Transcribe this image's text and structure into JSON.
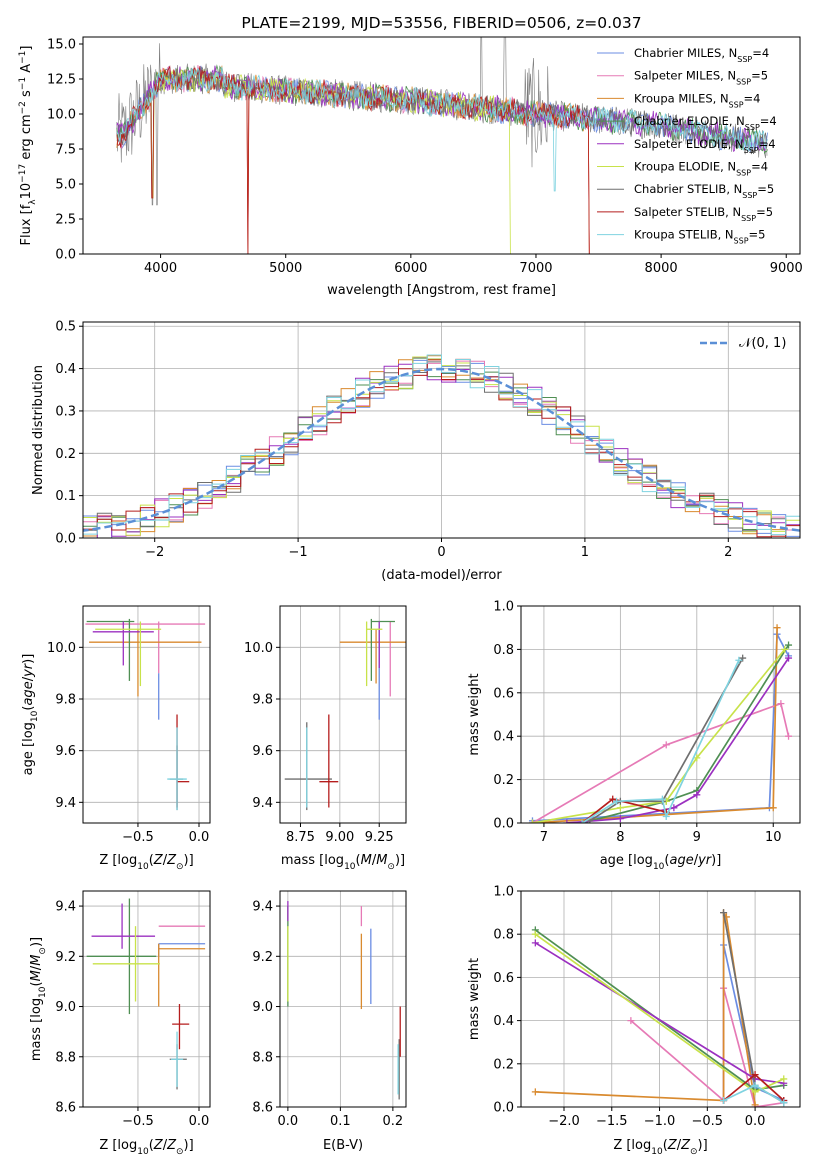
{
  "colors": [
    "#6b8de3",
    "#e67ab6",
    "#d98a2f",
    "#4f8f53",
    "#9b30c0",
    "#c8e24a",
    "#6f6f6f",
    "#b51d1d",
    "#7fd3e0"
  ],
  "chart_data": [
    {
      "panel": "spectrum",
      "type": "line",
      "title_parts": [
        "PLATE=2199, MJD=53556, FIBERID=0506, z=0.037"
      ],
      "xlabel": "wavelength [Angstrom, rest frame]",
      "ylabel_parts": [
        "Flux [f",
        "λ",
        "10",
        "−17",
        " erg cm",
        "−2",
        " s",
        "−1",
        " A",
        "−1",
        "]"
      ],
      "xlim": [
        3380,
        9110
      ],
      "ylim": [
        0,
        15.5
      ],
      "xticks": [
        4000,
        5000,
        6000,
        7000,
        8000,
        9000
      ],
      "yticks": [
        0.0,
        2.5,
        5.0,
        7.5,
        10.0,
        12.5,
        15.0
      ],
      "legend_position": "upper right",
      "series": [
        {
          "name": "Chabrier MILES",
          "nssp": "4"
        },
        {
          "name": "Salpeter MILES",
          "nssp": "5"
        },
        {
          "name": "Kroupa MILES",
          "nssp": "4"
        },
        {
          "name": "Chabrier ELODIE",
          "nssp": "4"
        },
        {
          "name": "Salpeter ELODIE",
          "nssp": "4"
        },
        {
          "name": "Kroupa ELODIE",
          "nssp": "4"
        },
        {
          "name": "Chabrier STELIB",
          "nssp": "5"
        },
        {
          "name": "Salpeter STELIB",
          "nssp": "5"
        },
        {
          "name": "Kroupa STELIB",
          "nssp": "5"
        }
      ],
      "legend_sub": "SSP",
      "legend_prefix": "N"
    },
    {
      "panel": "residuals",
      "type": "histogram",
      "xlabel": "(data-model)/error",
      "ylabel": "Normed distribution",
      "xlim": [
        -2.5,
        2.5
      ],
      "ylim": [
        0,
        0.51
      ],
      "xticks": [
        -2,
        -1,
        0,
        1,
        2
      ],
      "yticks": [
        0.0,
        0.1,
        0.2,
        0.3,
        0.4,
        0.5
      ],
      "reference_curve": "𝒩(0, 1)",
      "legend_position": "upper right"
    },
    {
      "panel": "age-vs-Z",
      "type": "errorbar",
      "xlabel": "Z [log10(Z/Z⊙)]",
      "ylabel": "age  [log10(age/yr)]",
      "xlim": [
        -0.95,
        0.09
      ],
      "ylim": [
        9.32,
        10.16
      ],
      "xticks": [
        -0.5,
        0.0
      ],
      "yticks": [
        9.4,
        9.6,
        9.8,
        10.0
      ],
      "points": [
        {
          "x": -0.33,
          "y": 9.8,
          "xerr": [
            0.0,
            0.0
          ],
          "yerr": [
            0.08,
            0.1
          ]
        },
        {
          "x": -0.33,
          "y": 10.09,
          "xerr": [
            0.6,
            0.38
          ],
          "yerr": [
            0.19,
            0.01
          ]
        },
        {
          "x": -0.5,
          "y": 10.02,
          "xerr": [
            0.4,
            0.52
          ],
          "yerr": [
            0.21,
            0.05
          ]
        },
        {
          "x": -0.57,
          "y": 10.1,
          "xerr": [
            0.35,
            0.04
          ],
          "yerr": [
            0.23,
            0.01
          ]
        },
        {
          "x": -0.62,
          "y": 10.06,
          "xerr": [
            0.25,
            0.25
          ],
          "yerr": [
            0.13,
            0.04
          ]
        },
        {
          "x": -0.48,
          "y": 10.07,
          "xerr": [
            0.37,
            0.17
          ],
          "yerr": [
            0.22,
            0.03
          ]
        },
        {
          "x": -0.18,
          "y": 9.49,
          "xerr": [
            0.06,
            0.05
          ],
          "yerr": [
            0.12,
            0.13
          ]
        },
        {
          "x": -0.18,
          "y": 9.48,
          "xerr": [
            0.0,
            0.1
          ],
          "yerr": [
            0.1,
            0.26
          ]
        },
        {
          "x": -0.18,
          "y": 9.49,
          "xerr": [
            0.08,
            0.08
          ],
          "yerr": [
            0.12,
            0.2
          ]
        }
      ]
    },
    {
      "panel": "age-vs-mass",
      "type": "errorbar",
      "xlabel": "mass [log10(M/M⊙)]",
      "ylabel": "",
      "xlim": [
        8.62,
        9.42
      ],
      "ylim": [
        9.32,
        10.16
      ],
      "xticks": [
        8.75,
        9.0,
        9.25
      ],
      "yticks": [
        9.4,
        9.6,
        9.8,
        10.0
      ],
      "points": [
        {
          "x": 9.25,
          "y": 9.8,
          "xerr": [
            0.0,
            0.0
          ],
          "yerr": [
            0.08,
            0.27
          ]
        },
        {
          "x": 9.32,
          "y": 10.09,
          "xerr": [
            0.0,
            0.0
          ],
          "yerr": [
            0.28,
            0.01
          ]
        },
        {
          "x": 9.23,
          "y": 10.02,
          "xerr": [
            0.23,
            0.2
          ],
          "yerr": [
            0.16,
            0.05
          ]
        },
        {
          "x": 9.2,
          "y": 10.1,
          "xerr": [
            0.0,
            0.15
          ],
          "yerr": [
            0.23,
            0.01
          ]
        },
        {
          "x": 9.25,
          "y": 10.07,
          "xerr": [
            0.0,
            0.0
          ],
          "yerr": [
            0.15,
            0.03
          ]
        },
        {
          "x": 9.17,
          "y": 10.07,
          "xerr": [
            0.0,
            0.1
          ],
          "yerr": [
            0.22,
            0.03
          ]
        },
        {
          "x": 8.79,
          "y": 9.49,
          "xerr": [
            0.14,
            0.16
          ],
          "yerr": [
            0.12,
            0.22
          ]
        },
        {
          "x": 8.93,
          "y": 9.48,
          "xerr": [
            0.06,
            0.06
          ],
          "yerr": [
            0.1,
            0.26
          ]
        },
        {
          "x": 8.79,
          "y": 9.49,
          "xerr": [
            0.0,
            0.0
          ],
          "yerr": [
            0.11,
            0.2
          ]
        }
      ]
    },
    {
      "panel": "weight-vs-age",
      "type": "line",
      "xlabel": "age  [log10(age/yr)]",
      "ylabel": "mass weight",
      "xlim": [
        6.7,
        10.35
      ],
      "ylim": [
        0,
        1
      ],
      "xticks": [
        7,
        8,
        9,
        10
      ],
      "yticks": [
        0.0,
        0.2,
        0.4,
        0.6,
        0.8,
        1.0
      ],
      "series": [
        {
          "x": [
            6.85,
            9.95,
            10.05,
            10.2
          ],
          "y": [
            0.01,
            0.07,
            0.87,
            0.77
          ]
        },
        {
          "x": [
            6.85,
            8.6,
            10.1,
            10.2
          ],
          "y": [
            0.0,
            0.36,
            0.55,
            0.4
          ]
        },
        {
          "x": [
            6.85,
            10.0,
            10.05
          ],
          "y": [
            0.0,
            0.07,
            0.9
          ]
        },
        {
          "x": [
            7.5,
            8.6,
            9.0,
            10.2
          ],
          "y": [
            0.0,
            0.1,
            0.15,
            0.82
          ]
        },
        {
          "x": [
            7.3,
            8.0,
            8.7,
            9.0,
            10.2
          ],
          "y": [
            0.0,
            0.02,
            0.07,
            0.13,
            0.76
          ]
        },
        {
          "x": [
            6.85,
            8.0,
            8.6,
            9.0,
            10.15
          ],
          "y": [
            0.0,
            0.07,
            0.1,
            0.3,
            0.8
          ]
        },
        {
          "x": [
            7.6,
            8.0,
            8.55,
            9.6
          ],
          "y": [
            0.01,
            0.1,
            0.1,
            0.76
          ]
        },
        {
          "x": [
            7.5,
            7.9,
            8.6
          ],
          "y": [
            0.0,
            0.11,
            0.05
          ]
        },
        {
          "x": [
            7.5,
            7.95,
            8.55,
            8.6,
            9.55
          ],
          "y": [
            0.0,
            0.1,
            0.11,
            0.03,
            0.75
          ]
        }
      ]
    },
    {
      "panel": "mass-vs-Z",
      "type": "errorbar",
      "xlabel": "Z [log10(Z/Z⊙)]",
      "ylabel": "mass [log10(M/M⊙)]",
      "xlim": [
        -0.95,
        0.09
      ],
      "ylim": [
        8.6,
        9.46
      ],
      "xticks": [
        -0.5,
        0.0
      ],
      "yticks": [
        8.6,
        8.8,
        9.0,
        9.2,
        9.4
      ],
      "points": [
        {
          "x": -0.33,
          "y": 9.25,
          "xerr": [
            0.0,
            0.38
          ],
          "yerr": [
            0.05,
            0.0
          ]
        },
        {
          "x": -0.33,
          "y": 9.32,
          "xerr": [
            0.0,
            0.38
          ],
          "yerr": [
            0.0,
            0.0
          ]
        },
        {
          "x": -0.33,
          "y": 9.23,
          "xerr": [
            0.0,
            0.38
          ],
          "yerr": [
            0.23,
            0.02
          ]
        },
        {
          "x": -0.57,
          "y": 9.2,
          "xerr": [
            0.35,
            0.22
          ],
          "yerr": [
            0.23,
            0.23
          ]
        },
        {
          "x": -0.63,
          "y": 9.28,
          "xerr": [
            0.25,
            0.27
          ],
          "yerr": [
            0.05,
            0.13
          ]
        },
        {
          "x": -0.52,
          "y": 9.17,
          "xerr": [
            0.35,
            0.2
          ],
          "yerr": [
            0.15,
            0.15
          ]
        },
        {
          "x": -0.18,
          "y": 8.79,
          "xerr": [
            0.06,
            0.08
          ],
          "yerr": [
            0.12,
            0.06
          ]
        },
        {
          "x": -0.16,
          "y": 8.93,
          "xerr": [
            0.06,
            0.08
          ],
          "yerr": [
            0.1,
            0.08
          ]
        },
        {
          "x": -0.18,
          "y": 8.79,
          "xerr": [
            0.05,
            0.05
          ],
          "yerr": [
            0.11,
            0.11
          ]
        }
      ]
    },
    {
      "panel": "mass-vs-ebv",
      "type": "errorbar",
      "xlabel": "E(B-V)",
      "ylabel": "",
      "xlim": [
        -0.015,
        0.225
      ],
      "ylim": [
        8.6,
        9.46
      ],
      "xticks": [
        0.0,
        0.1,
        0.2
      ],
      "yticks": [
        8.6,
        8.8,
        9.0,
        9.2,
        9.4
      ],
      "points": [
        {
          "x": 0.158,
          "y": 9.16,
          "xerr": [
            0.0,
            0.0
          ],
          "yerr": [
            0.15,
            0.15
          ]
        },
        {
          "x": 0.14,
          "y": 9.32,
          "xerr": [
            0.0,
            0.0
          ],
          "yerr": [
            0.0,
            0.08
          ]
        },
        {
          "x": 0.14,
          "y": 9.14,
          "xerr": [
            0.0,
            0.0
          ],
          "yerr": [
            0.15,
            0.15
          ]
        },
        {
          "x": 0.0,
          "y": 9.2,
          "xerr": [
            0.0,
            0.0
          ],
          "yerr": [
            0.2,
            0.2
          ]
        },
        {
          "x": 0.0,
          "y": 9.38,
          "xerr": [
            0.0,
            0.0
          ],
          "yerr": [
            0.04,
            0.04
          ]
        },
        {
          "x": 0.0,
          "y": 9.17,
          "xerr": [
            0.0,
            0.0
          ],
          "yerr": [
            0.15,
            0.15
          ]
        },
        {
          "x": 0.212,
          "y": 8.75,
          "xerr": [
            0.0,
            0.0
          ],
          "yerr": [
            0.12,
            0.12
          ]
        },
        {
          "x": 0.214,
          "y": 8.9,
          "xerr": [
            0.0,
            0.0
          ],
          "yerr": [
            0.1,
            0.1
          ]
        },
        {
          "x": 0.21,
          "y": 8.75,
          "xerr": [
            0.0,
            0.0
          ],
          "yerr": [
            0.1,
            0.1
          ]
        }
      ]
    },
    {
      "panel": "weight-vs-Z",
      "type": "line",
      "xlabel": "Z [log10(Z/Z⊙)]",
      "ylabel": "mass weight",
      "xlim": [
        -2.45,
        0.47
      ],
      "ylim": [
        0,
        1
      ],
      "xticks": [
        -2.0,
        -1.5,
        -1.0,
        -0.5,
        0.0
      ],
      "yticks": [
        0.0,
        0.2,
        0.4,
        0.6,
        0.8,
        1.0
      ],
      "series": [
        {
          "x": [
            -0.33,
            -0.33,
            0.0,
            0.3
          ],
          "y": [
            0.03,
            0.75,
            0.09,
            0.03
          ]
        },
        {
          "x": [
            -1.3,
            -0.33,
            -0.33,
            0.0,
            0.3
          ],
          "y": [
            0.4,
            0.03,
            0.55,
            0.0,
            0.02
          ]
        },
        {
          "x": [
            -2.3,
            -0.33,
            -0.33,
            -0.3,
            0.0
          ],
          "y": [
            0.07,
            0.03,
            0.9,
            0.88,
            0.01
          ]
        },
        {
          "x": [
            -2.3,
            0.0,
            0.3
          ],
          "y": [
            0.82,
            0.08,
            0.1
          ]
        },
        {
          "x": [
            -2.3,
            0.0,
            0.3
          ],
          "y": [
            0.76,
            0.13,
            0.11
          ]
        },
        {
          "x": [
            -2.3,
            0.0,
            0.3
          ],
          "y": [
            0.8,
            0.07,
            0.13
          ]
        },
        {
          "x": [
            -0.33,
            0.0,
            0.3
          ],
          "y": [
            0.9,
            0.1,
            0.02
          ]
        },
        {
          "x": [
            -0.33,
            0.0,
            0.3
          ],
          "y": [
            0.03,
            0.15,
            0.03
          ]
        },
        {
          "x": [
            -0.33,
            0.0,
            0.3
          ],
          "y": [
            0.03,
            0.1,
            0.02
          ]
        }
      ]
    }
  ]
}
